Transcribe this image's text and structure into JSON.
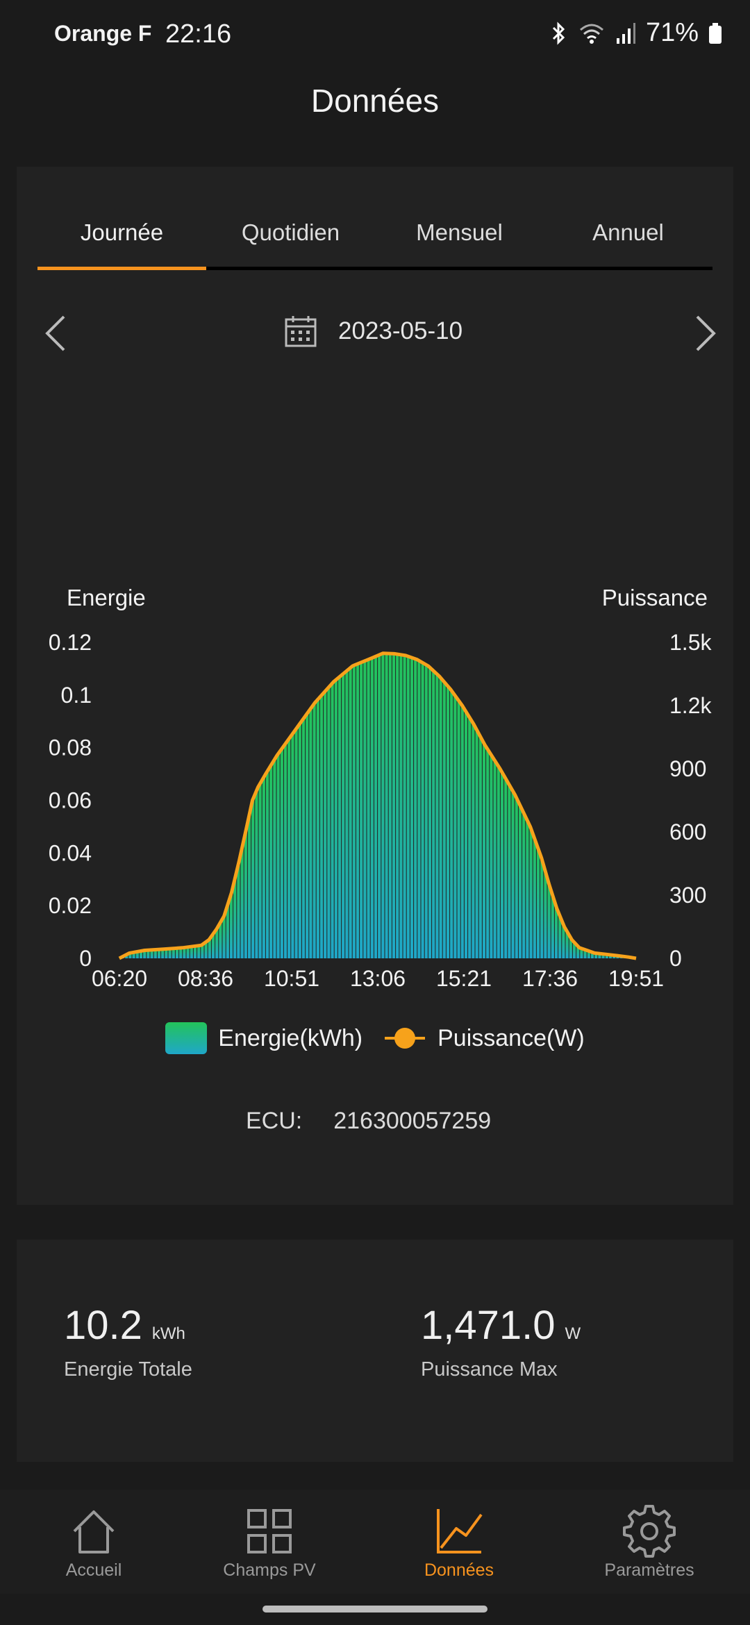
{
  "status_bar": {
    "carrier": "Orange F",
    "time": "22:16",
    "battery": "71%"
  },
  "header": {
    "title": "Données"
  },
  "tabs": [
    {
      "label": "Journée",
      "active": true
    },
    {
      "label": "Quotidien",
      "active": false
    },
    {
      "label": "Mensuel",
      "active": false
    },
    {
      "label": "Annuel",
      "active": false
    }
  ],
  "date_selector": {
    "date": "2023-05-10"
  },
  "colors": {
    "accent": "#f7931e",
    "power_line": "#f7a21b",
    "energy_top": "#23c35a",
    "energy_bottom": "#1fa7c9"
  },
  "chart_data": {
    "type": "area",
    "y_left_title": "Energie",
    "y_right_title": "Puissance",
    "y_left_ticks": [
      "0.12",
      "0.1",
      "0.08",
      "0.06",
      "0.04",
      "0.02",
      "0"
    ],
    "y_right_ticks": [
      "1.5k",
      "1.2k",
      "900",
      "600",
      "300",
      "0"
    ],
    "ylim_left": [
      0,
      0.12
    ],
    "ylim_right": [
      0,
      1500
    ],
    "x_tick_labels": [
      "06:20",
      "08:36",
      "10:51",
      "13:06",
      "15:21",
      "17:36",
      "19:51"
    ],
    "xlim_hours": [
      6.333,
      20.0
    ],
    "grid": false,
    "legend_position": "bottom",
    "series": [
      {
        "name": "Energie(kWh)",
        "axis": "left",
        "style": "bars",
        "x_hours": [
          6.33,
          6.6,
          7.0,
          7.5,
          8.0,
          8.5,
          8.7,
          8.9,
          9.1,
          9.3,
          9.5,
          9.7,
          9.85,
          10.0,
          10.2,
          10.5,
          11.0,
          11.5,
          12.0,
          12.5,
          13.0,
          13.3,
          13.6,
          13.9,
          14.2,
          14.5,
          14.8,
          15.1,
          15.4,
          15.7,
          16.0,
          16.4,
          16.8,
          17.2,
          17.5,
          17.7,
          17.9,
          18.1,
          18.3,
          18.5,
          18.7,
          18.9,
          19.2,
          19.5,
          19.8,
          20.0
        ],
        "values": [
          0.0,
          0.002,
          0.003,
          0.0035,
          0.004,
          0.005,
          0.007,
          0.011,
          0.016,
          0.025,
          0.037,
          0.05,
          0.06,
          0.065,
          0.07,
          0.077,
          0.087,
          0.097,
          0.105,
          0.111,
          0.114,
          0.1158,
          0.1157,
          0.115,
          0.1135,
          0.111,
          0.107,
          0.102,
          0.096,
          0.089,
          0.081,
          0.072,
          0.062,
          0.05,
          0.038,
          0.028,
          0.019,
          0.012,
          0.007,
          0.004,
          0.003,
          0.002,
          0.0015,
          0.001,
          0.0005,
          0.0
        ]
      },
      {
        "name": "Puissance(W)",
        "axis": "right",
        "style": "line",
        "x_hours": [
          6.33,
          6.6,
          7.0,
          7.5,
          8.0,
          8.5,
          8.7,
          8.9,
          9.1,
          9.3,
          9.5,
          9.7,
          9.85,
          10.0,
          10.2,
          10.5,
          11.0,
          11.5,
          12.0,
          12.5,
          13.0,
          13.3,
          13.6,
          13.9,
          14.2,
          14.5,
          14.8,
          15.1,
          15.4,
          15.7,
          16.0,
          16.4,
          16.8,
          17.2,
          17.5,
          17.7,
          17.9,
          18.1,
          18.3,
          18.5,
          18.7,
          18.9,
          19.2,
          19.5,
          19.8,
          20.0
        ],
        "values": [
          0,
          25,
          38,
          44,
          50,
          62,
          88,
          138,
          200,
          313,
          463,
          625,
          750,
          813,
          875,
          963,
          1088,
          1213,
          1313,
          1388,
          1425,
          1448,
          1446,
          1438,
          1419,
          1388,
          1338,
          1275,
          1200,
          1113,
          1013,
          900,
          775,
          625,
          475,
          350,
          238,
          150,
          88,
          50,
          38,
          25,
          19,
          13,
          6,
          0
        ]
      }
    ]
  },
  "ecu": {
    "label": "ECU:",
    "value": "216300057259"
  },
  "summary": {
    "total_energy": {
      "value": "10.2",
      "unit": "kWh",
      "label": "Energie Totale"
    },
    "max_power": {
      "value": "1,471.0",
      "unit": "W",
      "label": "Puissance Max"
    }
  },
  "bottom_nav": [
    {
      "label": "Accueil",
      "icon": "home-icon",
      "active": false
    },
    {
      "label": "Champs PV",
      "icon": "grid-icon",
      "active": false
    },
    {
      "label": "Données",
      "icon": "chart-icon",
      "active": true
    },
    {
      "label": "Paramètres",
      "icon": "gear-icon",
      "active": false
    }
  ]
}
